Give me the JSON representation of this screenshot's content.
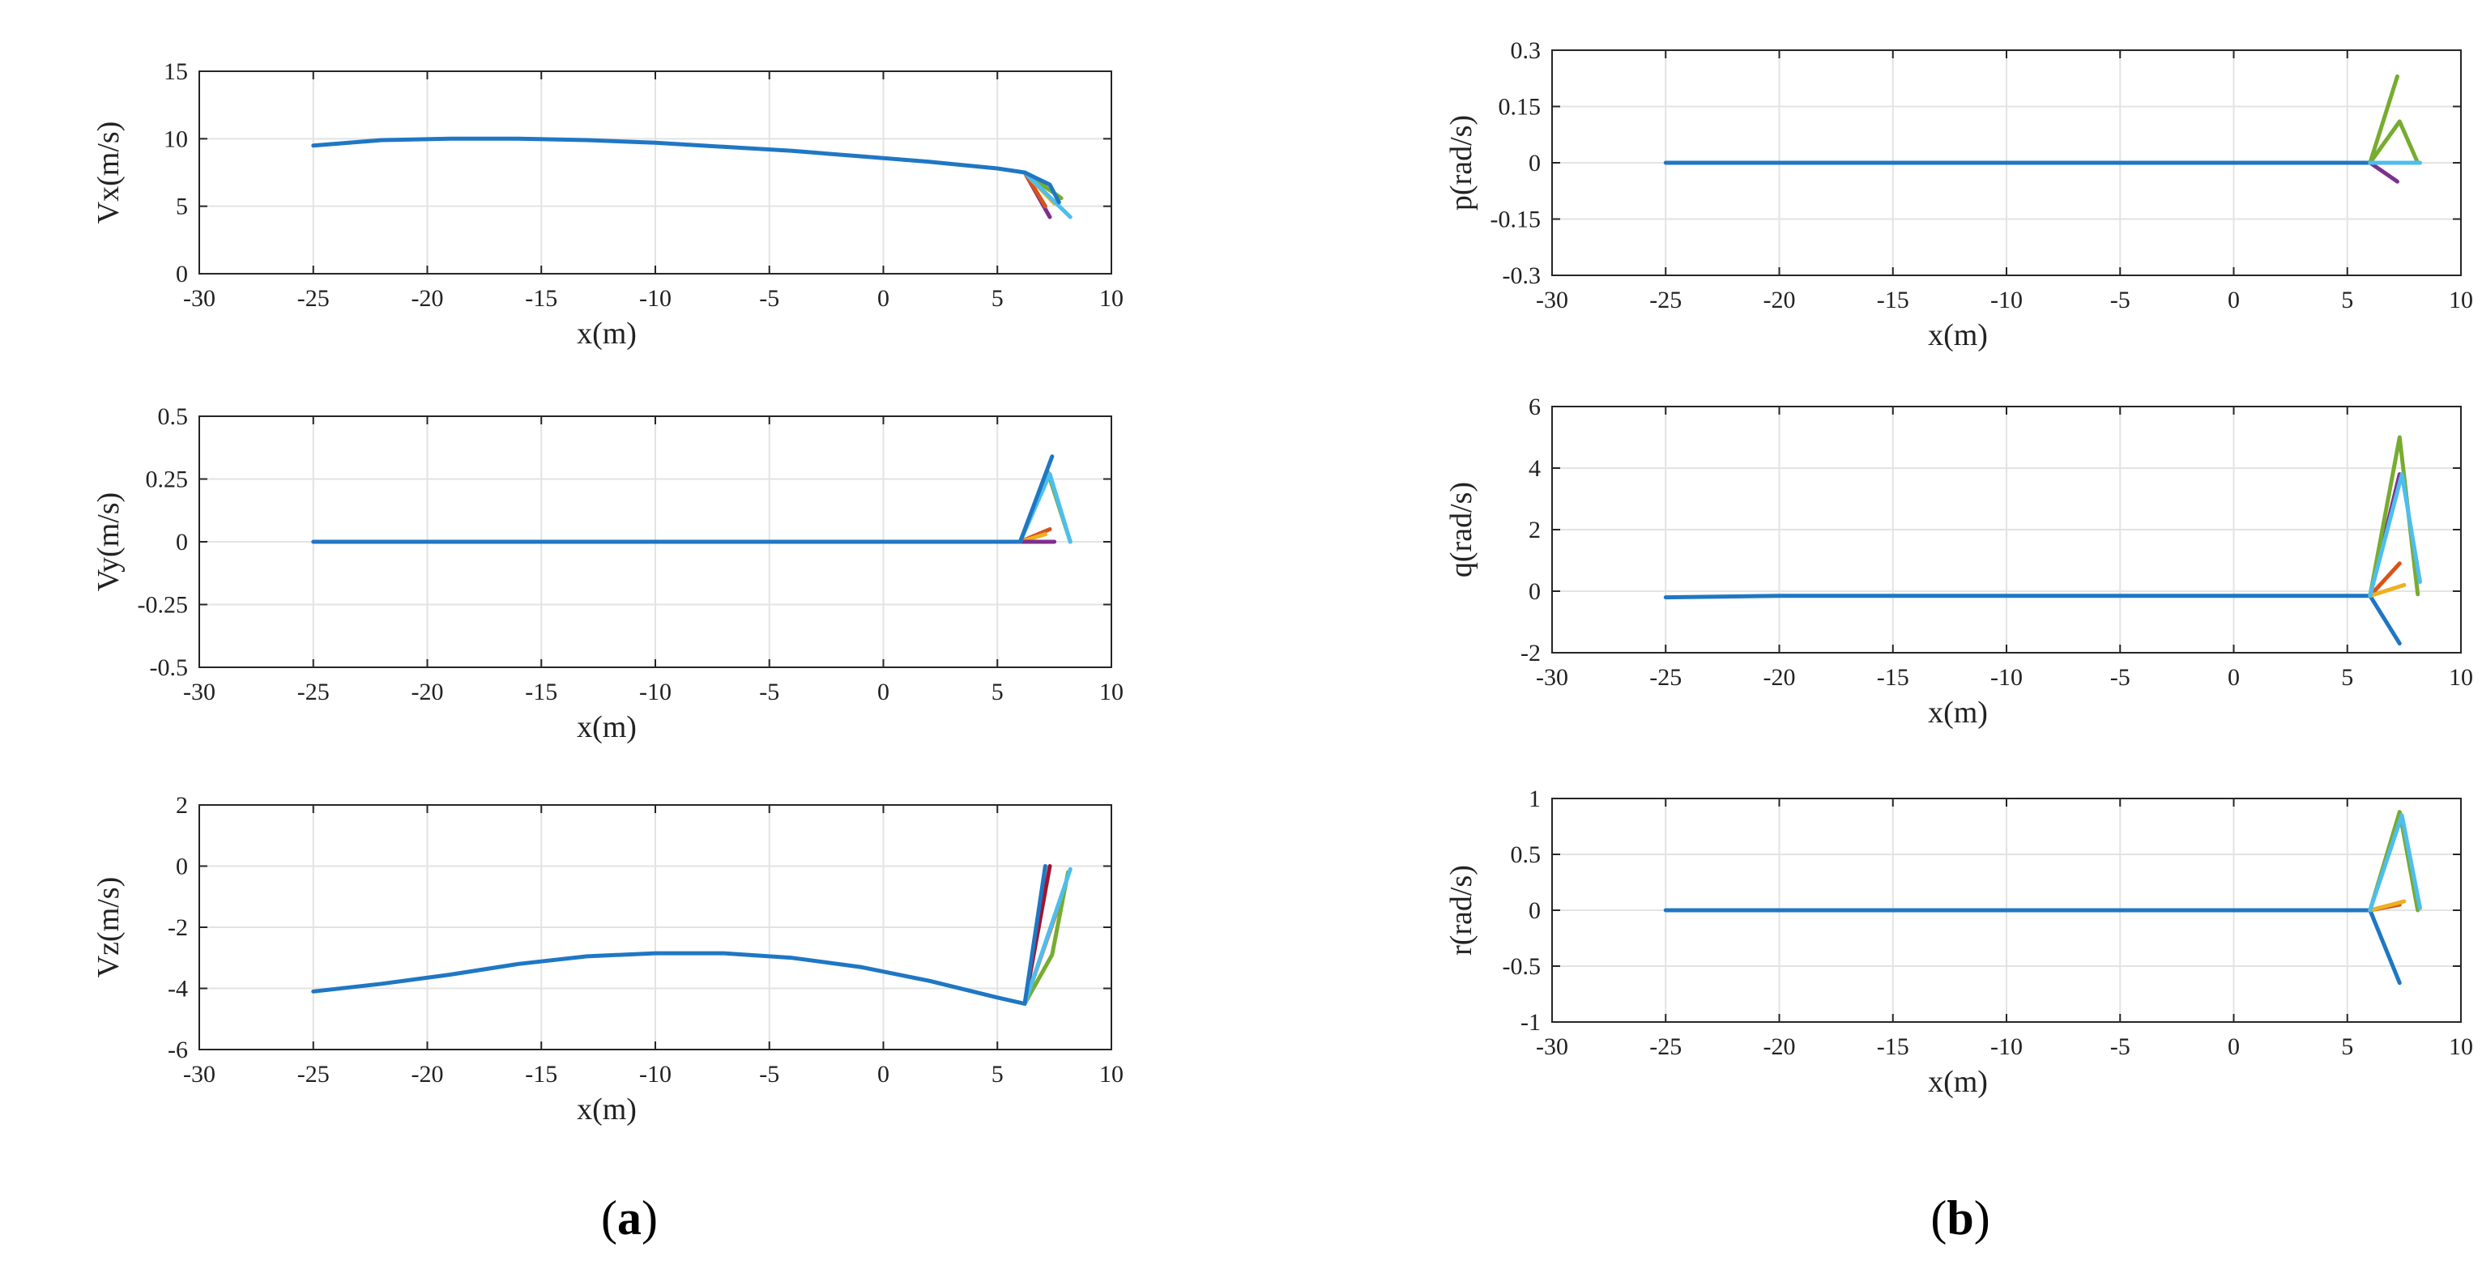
{
  "figure": {
    "panel_labels": [
      {
        "open": "(",
        "letter": "a",
        "close": ")"
      },
      {
        "open": "(",
        "letter": "b",
        "close": ")"
      }
    ],
    "colors": {
      "line_blue": "#1f77c4",
      "line_orange": "#d95319",
      "line_yellow": "#edb120",
      "line_purple": "#7e2f8e",
      "line_green": "#77ac30",
      "line_cyan": "#4dbeee",
      "line_red": "#a2142f",
      "grid": "#e3e3e3",
      "axis": "#262626"
    }
  },
  "chart_data": [
    {
      "id": "vx",
      "type": "line",
      "title": "",
      "xlabel": "x(m)",
      "ylabel": "Vx(m/s)",
      "xlim": [
        -30,
        10
      ],
      "ylim": [
        0,
        15
      ],
      "grid": true,
      "xticks": [
        -30,
        -25,
        -20,
        -15,
        -10,
        -5,
        0,
        5,
        10
      ],
      "xtick_labels": [
        "-30",
        "-25",
        "-20",
        "-15",
        "-10",
        "-5",
        "0",
        "5",
        "10"
      ],
      "yticks": [
        0,
        5,
        10,
        15
      ],
      "ytick_labels": [
        "0",
        "5",
        "10",
        "15"
      ],
      "series": [
        {
          "name": "main",
          "color": "line_blue",
          "x": [
            -25,
            -22,
            -19,
            -16,
            -13,
            -10,
            -7,
            -4,
            -1,
            2,
            5,
            6.2
          ],
          "y": [
            9.5,
            9.9,
            10.0,
            10.0,
            9.9,
            9.7,
            9.4,
            9.1,
            8.7,
            8.3,
            7.8,
            7.5
          ]
        },
        {
          "name": "b1",
          "color": "line_purple",
          "x": [
            6.2,
            7.3
          ],
          "y": [
            7.5,
            4.2
          ]
        },
        {
          "name": "b2",
          "color": "line_orange",
          "x": [
            6.2,
            7.1
          ],
          "y": [
            7.5,
            5.0
          ]
        },
        {
          "name": "b3",
          "color": "line_yellow",
          "x": [
            6.2,
            7.5
          ],
          "y": [
            7.5,
            5.2
          ]
        },
        {
          "name": "b4",
          "color": "line_green",
          "x": [
            6.2,
            7.8
          ],
          "y": [
            7.5,
            5.6
          ]
        },
        {
          "name": "b5",
          "color": "line_cyan",
          "x": [
            6.2,
            8.2
          ],
          "y": [
            7.5,
            4.2
          ]
        },
        {
          "name": "b6",
          "color": "line_blue",
          "x": [
            6.2,
            7.3,
            7.7
          ],
          "y": [
            7.5,
            6.6,
            5.3
          ]
        }
      ]
    },
    {
      "id": "vy",
      "type": "line",
      "title": "",
      "xlabel": "x(m)",
      "ylabel": "Vy(m/s)",
      "xlim": [
        -30,
        10
      ],
      "ylim": [
        -0.5,
        0.5
      ],
      "grid": true,
      "xticks": [
        -30,
        -25,
        -20,
        -15,
        -10,
        -5,
        0,
        5,
        10
      ],
      "xtick_labels": [
        "-30",
        "-25",
        "-20",
        "-15",
        "-10",
        "-5",
        "0",
        "5",
        "10"
      ],
      "yticks": [
        -0.5,
        -0.25,
        0,
        0.25,
        0.5
      ],
      "ytick_labels": [
        "-0.5",
        "-0.25",
        "0",
        "0.25",
        "0.5"
      ],
      "series": [
        {
          "name": "main",
          "color": "line_blue",
          "x": [
            -25,
            6.0
          ],
          "y": [
            0,
            0
          ]
        },
        {
          "name": "b1",
          "color": "line_orange",
          "x": [
            6.0,
            7.3
          ],
          "y": [
            0,
            0.05
          ]
        },
        {
          "name": "b2",
          "color": "line_yellow",
          "x": [
            6.0,
            7.1
          ],
          "y": [
            0,
            0.03
          ]
        },
        {
          "name": "b3",
          "color": "line_purple",
          "x": [
            6.0,
            7.5
          ],
          "y": [
            0,
            0.0
          ]
        },
        {
          "name": "b4",
          "color": "line_green",
          "x": [
            6.0,
            7.2,
            8.2
          ],
          "y": [
            0,
            0.28,
            0.0
          ]
        },
        {
          "name": "b5",
          "color": "line_cyan",
          "x": [
            6.0,
            7.3,
            8.2
          ],
          "y": [
            0,
            0.27,
            0.0
          ]
        },
        {
          "name": "b6",
          "color": "line_blue",
          "x": [
            6.0,
            7.4
          ],
          "y": [
            0,
            0.34
          ]
        }
      ]
    },
    {
      "id": "vz",
      "type": "line",
      "title": "",
      "xlabel": "x(m)",
      "ylabel": "Vz(m/s)",
      "xlim": [
        -30,
        10
      ],
      "ylim": [
        -6,
        2
      ],
      "grid": true,
      "xticks": [
        -30,
        -25,
        -20,
        -15,
        -10,
        -5,
        0,
        5,
        10
      ],
      "xtick_labels": [
        "-30",
        "-25",
        "-20",
        "-15",
        "-10",
        "-5",
        "0",
        "5",
        "10"
      ],
      "yticks": [
        -6,
        -4,
        -2,
        0,
        2
      ],
      "ytick_labels": [
        "-6",
        "-4",
        "-2",
        "0",
        "2"
      ],
      "series": [
        {
          "name": "main",
          "color": "line_blue",
          "x": [
            -25,
            -22,
            -19,
            -16,
            -13,
            -10,
            -7,
            -4,
            -1,
            2,
            5,
            6.2
          ],
          "y": [
            -4.1,
            -3.85,
            -3.55,
            -3.2,
            -2.95,
            -2.85,
            -2.85,
            -3.0,
            -3.3,
            -3.75,
            -4.3,
            -4.5
          ]
        },
        {
          "name": "b1",
          "color": "line_red",
          "x": [
            6.2,
            7.3
          ],
          "y": [
            -4.5,
            0.0
          ]
        },
        {
          "name": "b2",
          "color": "line_orange",
          "x": [
            6.2,
            7.6
          ],
          "y": [
            -4.5,
            -1.5
          ]
        },
        {
          "name": "b3",
          "color": "line_yellow",
          "x": [
            6.2,
            7.8
          ],
          "y": [
            -4.5,
            -1.0
          ]
        },
        {
          "name": "b4",
          "color": "line_green",
          "x": [
            6.2,
            7.4,
            8.1
          ],
          "y": [
            -4.5,
            -2.9,
            -0.2
          ]
        },
        {
          "name": "b5",
          "color": "line_cyan",
          "x": [
            6.2,
            8.2
          ],
          "y": [
            -4.5,
            -0.1
          ]
        },
        {
          "name": "b6",
          "color": "line_blue",
          "x": [
            6.2,
            7.1
          ],
          "y": [
            -4.5,
            0.0
          ]
        }
      ]
    },
    {
      "id": "p",
      "type": "line",
      "title": "",
      "xlabel": "x(m)",
      "ylabel": "p(rad/s)",
      "xlim": [
        -30,
        10
      ],
      "ylim": [
        -0.3,
        0.3
      ],
      "grid": true,
      "xticks": [
        -30,
        -25,
        -20,
        -15,
        -10,
        -5,
        0,
        5,
        10
      ],
      "xtick_labels": [
        "-30",
        "-25",
        "-20",
        "-15",
        "-10",
        "-5",
        "0",
        "5",
        "10"
      ],
      "yticks": [
        -0.3,
        -0.15,
        0,
        0.15,
        0.3
      ],
      "ytick_labels": [
        "-0.3",
        "-0.15",
        "0",
        "0.15",
        "0.3"
      ],
      "series": [
        {
          "name": "main",
          "color": "line_blue",
          "x": [
            -25,
            6.0
          ],
          "y": [
            0,
            0
          ]
        },
        {
          "name": "b1",
          "color": "line_purple",
          "x": [
            6.0,
            7.2
          ],
          "y": [
            0,
            -0.05
          ]
        },
        {
          "name": "b2",
          "color": "line_green",
          "x": [
            6.0,
            7.2
          ],
          "y": [
            0,
            0.23
          ]
        },
        {
          "name": "b3",
          "color": "line_green",
          "x": [
            6.0,
            7.3,
            8.1
          ],
          "y": [
            0,
            0.11,
            0.0
          ]
        },
        {
          "name": "b4",
          "color": "line_cyan",
          "x": [
            6.0,
            8.2
          ],
          "y": [
            0,
            0.0
          ]
        }
      ]
    },
    {
      "id": "q",
      "type": "line",
      "title": "",
      "xlabel": "x(m)",
      "ylabel": "q(rad/s)",
      "xlim": [
        -30,
        10
      ],
      "ylim": [
        -2,
        6
      ],
      "grid": true,
      "xticks": [
        -30,
        -25,
        -20,
        -15,
        -10,
        -5,
        0,
        5,
        10
      ],
      "xtick_labels": [
        "-30",
        "-25",
        "-20",
        "-15",
        "-10",
        "-5",
        "0",
        "5",
        "10"
      ],
      "yticks": [
        -2,
        0,
        2,
        4,
        6
      ],
      "ytick_labels": [
        "-2",
        "0",
        "2",
        "4",
        "6"
      ],
      "series": [
        {
          "name": "main",
          "color": "line_blue",
          "x": [
            -25,
            -20,
            -10,
            0,
            6.0
          ],
          "y": [
            -0.2,
            -0.15,
            -0.15,
            -0.15,
            -0.15
          ]
        },
        {
          "name": "b1",
          "color": "line_blue",
          "x": [
            6.0,
            7.3
          ],
          "y": [
            -0.15,
            -1.7
          ]
        },
        {
          "name": "b2",
          "color": "line_orange",
          "x": [
            6.0,
            7.3
          ],
          "y": [
            -0.15,
            0.9
          ]
        },
        {
          "name": "b3",
          "color": "line_yellow",
          "x": [
            6.0,
            7.5
          ],
          "y": [
            -0.15,
            0.2
          ]
        },
        {
          "name": "b4",
          "color": "line_purple",
          "x": [
            6.0,
            7.3
          ],
          "y": [
            -0.15,
            3.8
          ]
        },
        {
          "name": "b5",
          "color": "line_green",
          "x": [
            6.0,
            7.3,
            8.1
          ],
          "y": [
            -0.15,
            5.0,
            -0.1
          ]
        },
        {
          "name": "b6",
          "color": "line_cyan",
          "x": [
            6.0,
            7.4,
            8.2
          ],
          "y": [
            -0.15,
            3.8,
            0.3
          ]
        }
      ]
    },
    {
      "id": "r",
      "type": "line",
      "title": "",
      "xlabel": "x(m)",
      "ylabel": "r(rad/s)",
      "xlim": [
        -30,
        10
      ],
      "ylim": [
        -1,
        1
      ],
      "grid": true,
      "xticks": [
        -30,
        -25,
        -20,
        -15,
        -10,
        -5,
        0,
        5,
        10
      ],
      "xtick_labels": [
        "-30",
        "-25",
        "-20",
        "-15",
        "-10",
        "-5",
        "0",
        "5",
        "10"
      ],
      "yticks": [
        -1,
        -0.5,
        0,
        0.5,
        1
      ],
      "ytick_labels": [
        "-1",
        "-0.5",
        "0",
        "0.5",
        "1"
      ],
      "series": [
        {
          "name": "main",
          "color": "line_blue",
          "x": [
            -25,
            6.0
          ],
          "y": [
            0,
            0
          ]
        },
        {
          "name": "b1",
          "color": "line_blue",
          "x": [
            6.0,
            7.3
          ],
          "y": [
            0,
            -0.65
          ]
        },
        {
          "name": "b2",
          "color": "line_orange",
          "x": [
            6.0,
            7.3
          ],
          "y": [
            0,
            0.05
          ]
        },
        {
          "name": "b3",
          "color": "line_yellow",
          "x": [
            6.0,
            7.5
          ],
          "y": [
            0,
            0.08
          ]
        },
        {
          "name": "b4",
          "color": "line_green",
          "x": [
            6.0,
            7.3,
            8.1
          ],
          "y": [
            0,
            0.88,
            0.0
          ]
        },
        {
          "name": "b5",
          "color": "line_cyan",
          "x": [
            6.0,
            7.4,
            8.2
          ],
          "y": [
            0,
            0.85,
            0.02
          ]
        }
      ]
    }
  ]
}
